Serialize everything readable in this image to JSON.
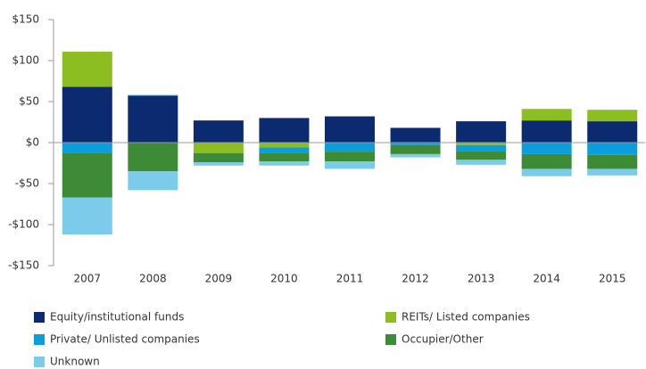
{
  "chart_data": {
    "type": "bar",
    "stacked": true,
    "categories": [
      "2007",
      "2008",
      "2009",
      "2010",
      "2011",
      "2012",
      "2013",
      "2014",
      "2015"
    ],
    "series": [
      {
        "name": "Equity/institutional funds",
        "color": "#0b2a6f",
        "values": [
          68,
          57,
          27,
          30,
          32,
          18,
          26,
          27,
          26
        ]
      },
      {
        "name": "REITs/ Listed companies",
        "color": "#8cbe22",
        "values": [
          43,
          0,
          -13,
          -6,
          0,
          0,
          -3,
          14,
          14
        ]
      },
      {
        "name": "Private/ Unlisted companies",
        "color": "#0a9fdc",
        "values": [
          -13,
          1,
          0,
          -7,
          -11,
          -3,
          -7,
          -14,
          -15
        ]
      },
      {
        "name": "Occupier/Other",
        "color": "#3d8b37",
        "values": [
          -54,
          -35,
          -11,
          -10,
          -12,
          -11,
          -11,
          -18,
          -17
        ]
      },
      {
        "name": "Unknown",
        "color": "#7ccbea",
        "values": [
          -45,
          -23,
          -4,
          -5,
          -9,
          -4,
          -6,
          -9,
          -8
        ]
      }
    ],
    "ylim": [
      -150,
      150
    ],
    "yticks": [
      {
        "value": -150,
        "label": "-$150"
      },
      {
        "value": -100,
        "label": "-$100"
      },
      {
        "value": -50,
        "label": "-$50"
      },
      {
        "value": 0,
        "label": "$0"
      },
      {
        "value": 50,
        "label": "$50"
      },
      {
        "value": 100,
        "label": "$100"
      },
      {
        "value": 150,
        "label": "$150"
      }
    ],
    "legend": "bottom"
  }
}
